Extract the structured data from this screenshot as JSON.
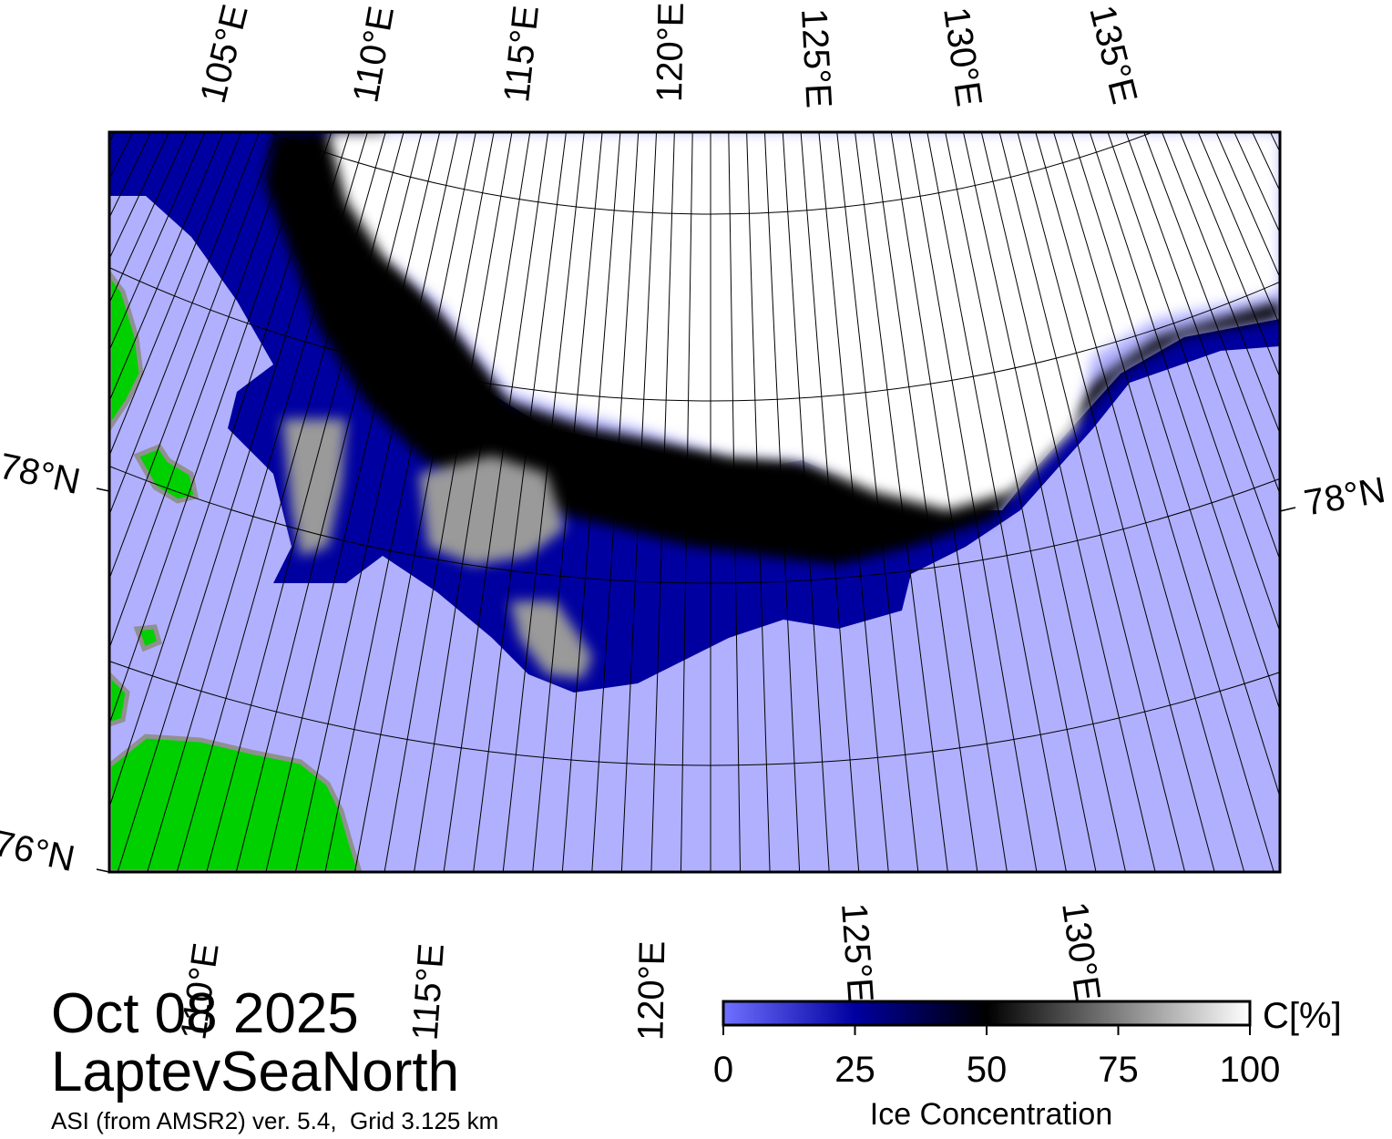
{
  "map": {
    "colors": {
      "open_water": "#b0b0ff",
      "low_ice": "#0000a0",
      "mid_ice": "#000000",
      "high_ice": "#ffffff",
      "land": "#00d000",
      "coast_fringe": "#909090",
      "graticule": "#000000"
    },
    "top_longitude_labels": [
      "105°E",
      "110°E",
      "115°E",
      "120°E",
      "125°E",
      "130°E",
      "135°E"
    ],
    "bottom_longitude_labels": [
      "110°E",
      "115°E",
      "120°E",
      "125°E",
      "130°E"
    ],
    "latitude_labels": {
      "left_upper": "78°N",
      "right": "78°N",
      "left_lower": "76°N"
    }
  },
  "caption": {
    "date": "Oct 08 2025",
    "region": "LaptevSeaNorth",
    "source": "ASI (from AMSR2) ver. 5.4,  Grid 3.125 km"
  },
  "colorbar": {
    "unit": "C[%]",
    "title": "Ice Concentration",
    "ticks": [
      "0",
      "25",
      "50",
      "75",
      "100"
    ],
    "stops": [
      "#7070ff",
      "#0000a0",
      "#000000",
      "#808080",
      "#ffffff"
    ]
  }
}
